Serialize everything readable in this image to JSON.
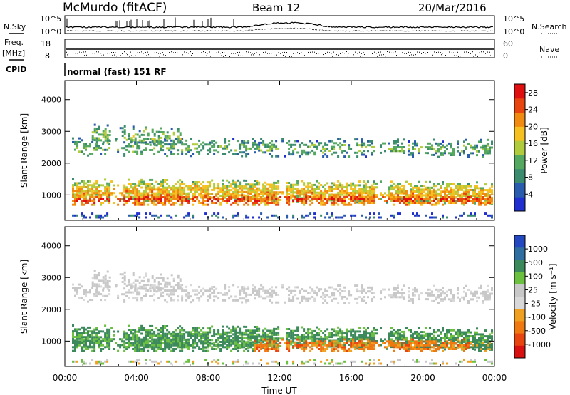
{
  "header": {
    "station": "McMurdo (fitACF)",
    "beam": "Beam 12",
    "date": "20/Mar/2016"
  },
  "strip_labels": {
    "nsky": "N.Sky",
    "freq": "Freq.",
    "mhz": "[MHz]",
    "cpid": "CPID",
    "nsearch": "N.Search",
    "nave": "Nave",
    "cpid_text": "normal (fast) 151 RF"
  },
  "strip_ticks": {
    "noise_left": [
      "10^5",
      "10^0"
    ],
    "noise_right": [
      "10^5",
      "10^0"
    ],
    "freq_left": [
      "18",
      "8"
    ],
    "nave_right": [
      "60",
      "0"
    ]
  },
  "colors": {
    "power": [
      "#1f2fd0",
      "#2a5cae",
      "#3b8c6e",
      "#55a860",
      "#b0cc3c",
      "#f5c020",
      "#f08a10",
      "#e84410",
      "#e01010"
    ],
    "velocity": [
      "#2448c0",
      "#2e6ea0",
      "#3c8a5c",
      "#6cc040",
      "#c8c8c8",
      "#d8d8d8",
      "#f0a020",
      "#f07810",
      "#e84410",
      "#d81010"
    ]
  },
  "chart_data": [
    {
      "type": "heatmap",
      "name": "Power",
      "ylabel": "Slant Range [km]",
      "xlabel": "",
      "ylim": [
        200,
        4600
      ],
      "xlim": [
        0,
        24
      ],
      "y_ticks": [
        "1000",
        "2000",
        "3000",
        "4000"
      ],
      "colorbar_label": "Power [dB]",
      "colorbar_ticks": [
        "4",
        "8",
        "12",
        "16",
        "20",
        "24",
        "28"
      ],
      "colorbar_range": [
        0,
        30
      ]
    },
    {
      "type": "heatmap",
      "name": "Velocity",
      "ylabel": "Slant Range [km]",
      "xlabel": "Time UT",
      "ylim": [
        200,
        4600
      ],
      "xlim": [
        0,
        24
      ],
      "y_ticks": [
        "1000",
        "2000",
        "3000",
        "4000"
      ],
      "x_ticks": [
        "00:00",
        "04:00",
        "08:00",
        "12:00",
        "16:00",
        "20:00",
        "00:00"
      ],
      "colorbar_label": "Velocity [m s⁻¹]",
      "colorbar_ticks": [
        "-1000",
        "-500",
        "-100",
        "-25",
        "25",
        "100",
        "500",
        "1000"
      ]
    }
  ],
  "scatter_bands": [
    {
      "start": 0.4,
      "end": 23.9,
      "center_start": 1150,
      "center_end": 1050,
      "width": 380,
      "density": 0.8,
      "power_center": 20,
      "vel_class": "green"
    },
    {
      "start": 0.4,
      "end": 23.9,
      "center_start": 850,
      "center_end": 850,
      "width": 220,
      "density": 0.7,
      "power_center": 27,
      "vel_class": "green_orange"
    },
    {
      "start": 0.4,
      "end": 23.9,
      "center_start": 2500,
      "center_end": 2450,
      "width": 320,
      "density": 0.45,
      "power_center": 12,
      "vel_class": "gray"
    },
    {
      "start": 1.5,
      "end": 6.5,
      "center_start": 2900,
      "center_end": 2750,
      "width": 350,
      "density": 0.5,
      "power_center": 14,
      "vel_class": "gray"
    },
    {
      "start": 0.4,
      "end": 23.9,
      "center_start": 330,
      "center_end": 330,
      "width": 100,
      "density": 0.35,
      "power_center": 6,
      "vel_class": "mixed"
    }
  ]
}
